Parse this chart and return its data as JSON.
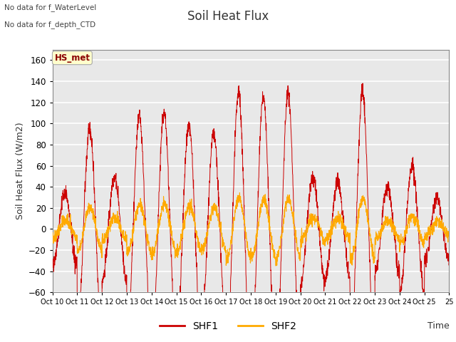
{
  "title": "Soil Heat Flux",
  "ylabel": "Soil Heat Flux (W/m2)",
  "xlabel": "Time",
  "ylim": [
    -60,
    170
  ],
  "yticks": [
    -60,
    -40,
    -20,
    0,
    20,
    40,
    60,
    80,
    100,
    120,
    140,
    160
  ],
  "fig_bg_color": "#ffffff",
  "plot_bg_color": "#e8e8e8",
  "grid_color": "#ffffff",
  "shf1_color": "#cc0000",
  "shf2_color": "#ffaa00",
  "annotations": [
    "No data for f_WaterLevel",
    "No data for f_depth_CTD"
  ],
  "station_label": "HS_met",
  "station_label_color": "#8b0000",
  "station_label_bg": "#ffffcc",
  "xtick_labels": [
    "Oct 10",
    "Oct 11",
    "Oct 12",
    "Oct 13",
    "Oct 14",
    "Oct 15",
    "Oct 16",
    "Oct 17",
    "Oct 18",
    "Oct 19",
    "Oct 20",
    "Oct 21",
    "Oct 22",
    "Oct 23",
    "Oct 24",
    "Oct 25"
  ],
  "num_days": 16,
  "seed": 42,
  "shf1_day_amps": [
    35,
    95,
    50,
    105,
    110,
    100,
    90,
    130,
    125,
    128,
    50,
    45,
    130,
    40,
    60,
    30
  ],
  "shf2_amp_ratio": 0.22,
  "shf2_noise": 3.0,
  "shf1_noise": 4.0
}
